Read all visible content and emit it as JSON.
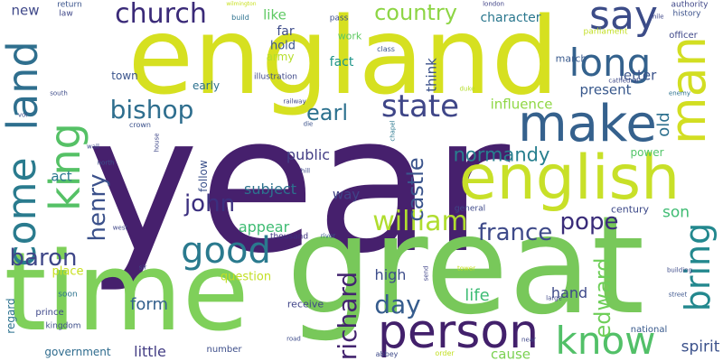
{
  "words": [
    {
      "id": "year",
      "text": "year",
      "color": "#46206d",
      "weight": 1.0
    },
    {
      "id": "great",
      "text": "great",
      "color": "#78c85a",
      "weight": 0.95
    },
    {
      "id": "england",
      "text": "england",
      "color": "#d6e020",
      "weight": 0.85
    },
    {
      "id": "time",
      "text": "time",
      "color": "#7fd05a",
      "weight": 0.78
    },
    {
      "id": "english",
      "text": "english",
      "color": "#c8e028",
      "weight": 0.58
    },
    {
      "id": "make",
      "text": "make",
      "color": "#35618d",
      "weight": 0.52
    },
    {
      "id": "man",
      "text": "man",
      "color": "#d2de22",
      "weight": 0.5
    },
    {
      "id": "person",
      "text": "person",
      "color": "#42206b",
      "weight": 0.44
    },
    {
      "id": "land",
      "text": "land",
      "color": "#2f6f8e",
      "weight": 0.44
    },
    {
      "id": "come",
      "text": "come",
      "color": "#2a7b8e",
      "weight": 0.4
    },
    {
      "id": "king",
      "text": "king",
      "color": "#55c166",
      "weight": 0.4
    },
    {
      "id": "say",
      "text": "say",
      "color": "#3c4c88",
      "weight": 0.38
    },
    {
      "id": "long",
      "text": "long",
      "color": "#34628d",
      "weight": 0.36
    },
    {
      "id": "know",
      "text": "know",
      "color": "#52c068",
      "weight": 0.36
    },
    {
      "id": "bring",
      "text": "bring",
      "color": "#23888e",
      "weight": 0.34
    },
    {
      "id": "good",
      "text": "good",
      "color": "#2a7a8e",
      "weight": 0.32
    },
    {
      "id": "state",
      "text": "state",
      "color": "#3f4688",
      "weight": 0.3
    },
    {
      "id": "william",
      "text": "william",
      "color": "#b0dd2f",
      "weight": 0.26
    },
    {
      "id": "church",
      "text": "church",
      "color": "#3a2a78",
      "weight": 0.24
    },
    {
      "id": "bishop",
      "text": "bishop",
      "color": "#2e6e8e",
      "weight": 0.23
    },
    {
      "id": "richard",
      "text": "richard",
      "color": "#43246f",
      "weight": 0.23
    },
    {
      "id": "henry",
      "text": "henry",
      "color": "#3b518b",
      "weight": 0.22
    },
    {
      "id": "day",
      "text": "day",
      "color": "#365c8d",
      "weight": 0.22
    },
    {
      "id": "edward",
      "text": "edward",
      "color": "#6ece58",
      "weight": 0.21
    },
    {
      "id": "pope",
      "text": "pope",
      "color": "#3a2c79",
      "weight": 0.21
    },
    {
      "id": "john",
      "text": "john",
      "color": "#3b2f7f",
      "weight": 0.2
    },
    {
      "id": "france",
      "text": "france",
      "color": "#3e4a89",
      "weight": 0.2
    },
    {
      "id": "baron",
      "text": "baron",
      "color": "#3f4788",
      "weight": 0.2
    },
    {
      "id": "country",
      "text": "country",
      "color": "#8dd544",
      "weight": 0.19
    },
    {
      "id": "earl",
      "text": "earl",
      "color": "#2c718e",
      "weight": 0.19
    },
    {
      "id": "castle",
      "text": "castle",
      "color": "#3a548c",
      "weight": 0.19
    },
    {
      "id": "normandy",
      "text": "normandy",
      "color": "#277f8e",
      "weight": 0.17
    },
    {
      "id": "life",
      "text": "life",
      "color": "#3dbc74",
      "weight": 0.15
    },
    {
      "id": "form",
      "text": "form",
      "color": "#34618d",
      "weight": 0.15
    },
    {
      "id": "old",
      "text": "old",
      "color": "#2d708e",
      "weight": 0.15
    },
    {
      "id": "spirit",
      "text": "spirit",
      "color": "#3b518b",
      "weight": 0.14
    },
    {
      "id": "son",
      "text": "son",
      "color": "#3fbc73",
      "weight": 0.14
    },
    {
      "id": "hand",
      "text": "hand",
      "color": "#3e4989",
      "weight": 0.13
    },
    {
      "id": "high",
      "text": "high",
      "color": "#3d4d8a",
      "weight": 0.13
    },
    {
      "id": "appear",
      "text": "appear",
      "color": "#3fbc73",
      "weight": 0.13
    },
    {
      "id": "public",
      "text": "public",
      "color": "#433e85",
      "weight": 0.12
    },
    {
      "id": "subject",
      "text": "subject",
      "color": "#2c728e",
      "weight": 0.12
    },
    {
      "id": "little",
      "text": "little",
      "color": "#433d84",
      "weight": 0.12
    },
    {
      "id": "influence",
      "text": "influence",
      "color": "#8fd744",
      "weight": 0.12
    },
    {
      "id": "present",
      "text": "present",
      "color": "#38588c",
      "weight": 0.12
    },
    {
      "id": "letter",
      "text": "letter",
      "color": "#3a538b",
      "weight": 0.12
    },
    {
      "id": "character",
      "text": "character",
      "color": "#2a778e",
      "weight": 0.11
    },
    {
      "id": "like",
      "text": "like",
      "color": "#5ec962",
      "weight": 0.11
    },
    {
      "id": "way",
      "text": "way",
      "color": "#404387",
      "weight": 0.11
    },
    {
      "id": "think",
      "text": "think",
      "color": "#3b518b",
      "weight": 0.11
    },
    {
      "id": "cause",
      "text": "cause",
      "color": "#7ad151",
      "weight": 0.11
    },
    {
      "id": "new",
      "text": "new",
      "color": "#3f4889",
      "weight": 0.11
    },
    {
      "id": "act",
      "text": "act",
      "color": "#2a788e",
      "weight": 0.11
    },
    {
      "id": "fact",
      "text": "fact",
      "color": "#1f968b",
      "weight": 0.1
    },
    {
      "id": "far",
      "text": "far",
      "color": "#3e4c8a",
      "weight": 0.1
    },
    {
      "id": "hold",
      "text": "hold",
      "color": "#3a548c",
      "weight": 0.1
    },
    {
      "id": "army",
      "text": "army",
      "color": "#b5de2b",
      "weight": 0.09
    },
    {
      "id": "question",
      "text": "question",
      "color": "#c2df23",
      "weight": 0.09
    },
    {
      "id": "place",
      "text": "place",
      "color": "#c8e020",
      "weight": 0.09
    },
    {
      "id": "follow",
      "text": "follow",
      "color": "#3b518b",
      "weight": 0.09
    },
    {
      "id": "regard",
      "text": "regard",
      "color": "#2c718e",
      "weight": 0.09
    },
    {
      "id": "government",
      "text": "government",
      "color": "#2f6c8e",
      "weight": 0.08
    },
    {
      "id": "receive",
      "text": "receive",
      "color": "#404588",
      "weight": 0.08
    },
    {
      "id": "power",
      "text": "power",
      "color": "#52c569",
      "weight": 0.08
    },
    {
      "id": "town",
      "text": "town",
      "color": "#3a548c",
      "weight": 0.08
    },
    {
      "id": "early",
      "text": "early",
      "color": "#2c718e",
      "weight": 0.08
    },
    {
      "id": "century",
      "text": "century",
      "color": "#3e4a89",
      "weight": 0.07
    },
    {
      "id": "work",
      "text": "work",
      "color": "#5ec962",
      "weight": 0.07
    },
    {
      "id": "march",
      "text": "march",
      "color": "#38598c",
      "weight": 0.07
    },
    {
      "id": "prince",
      "text": "prince",
      "color": "#3f4889",
      "weight": 0.07
    },
    {
      "id": "national",
      "text": "national",
      "color": "#38598c",
      "weight": 0.07
    },
    {
      "id": "officer",
      "text": "officer",
      "color": "#3f4889",
      "weight": 0.07
    },
    {
      "id": "number",
      "text": "number",
      "color": "#3d4e8a",
      "weight": 0.07
    },
    {
      "id": "history",
      "text": "history",
      "color": "#3b518b",
      "weight": 0.06
    },
    {
      "id": "general",
      "text": "general",
      "color": "#3e4989",
      "weight": 0.06
    },
    {
      "id": "thousand",
      "text": "thousand",
      "color": "#3b2f7f",
      "weight": 0.06
    },
    {
      "id": "authority",
      "text": "authority",
      "color": "#3f4788",
      "weight": 0.06
    },
    {
      "id": "parliament",
      "text": "parliament",
      "color": "#c2df23",
      "weight": 0.06
    },
    {
      "id": "kingdom",
      "text": "kingdom",
      "color": "#3d4e8a",
      "weight": 0.06
    },
    {
      "id": "illustration",
      "text": "illustration",
      "color": "#3e4989",
      "weight": 0.06
    },
    {
      "id": "soon",
      "text": "soon",
      "color": "#2c738e",
      "weight": 0.06
    },
    {
      "id": "return",
      "text": "return",
      "color": "#3a538b",
      "weight": 0.05
    },
    {
      "id": "law",
      "text": "law",
      "color": "#3f4788",
      "weight": 0.05
    },
    {
      "id": "build",
      "text": "build",
      "color": "#2c718e",
      "weight": 0.05
    },
    {
      "id": "pass",
      "text": "pass",
      "color": "#3d4e8a",
      "weight": 0.05
    },
    {
      "id": "class",
      "text": "class",
      "color": "#3a548c",
      "weight": 0.05
    },
    {
      "id": "london",
      "text": "london",
      "color": "#404387",
      "weight": 0.05
    },
    {
      "id": "mile",
      "text": "mile",
      "color": "#3f4788",
      "weight": 0.05
    },
    {
      "id": "cathedral",
      "text": "cathedral",
      "color": "#3e4a89",
      "weight": 0.05
    },
    {
      "id": "enemy",
      "text": "enemy",
      "color": "#2c718e",
      "weight": 0.05
    },
    {
      "id": "duke",
      "text": "duke",
      "color": "#b5de2b",
      "weight": 0.05
    },
    {
      "id": "south",
      "text": "south",
      "color": "#3e4c8a",
      "weight": 0.05
    },
    {
      "id": "vol",
      "text": "vol",
      "color": "#3d4e8a",
      "weight": 0.05
    },
    {
      "id": "crown",
      "text": "crown",
      "color": "#3b518b",
      "weight": 0.05
    },
    {
      "id": "railway",
      "text": "railway",
      "color": "#3f4788",
      "weight": 0.05
    },
    {
      "id": "die",
      "text": "die",
      "color": "#3b518b",
      "weight": 0.05
    },
    {
      "id": "chapel",
      "text": "chapel",
      "color": "#2a788e",
      "weight": 0.05
    },
    {
      "id": "wall",
      "text": "wall",
      "color": "#3e4a89",
      "weight": 0.05
    },
    {
      "id": "house",
      "text": "house",
      "color": "#3f4788",
      "weight": 0.05
    },
    {
      "id": "north",
      "text": "north",
      "color": "#3b518b",
      "weight": 0.05
    },
    {
      "id": "hill",
      "text": "hill",
      "color": "#3e4c8a",
      "weight": 0.05
    },
    {
      "id": "west",
      "text": "west",
      "color": "#3f4788",
      "weight": 0.05
    },
    {
      "id": "river",
      "text": "river",
      "color": "#38588c",
      "weight": 0.05
    },
    {
      "id": "sir",
      "text": "sir",
      "color": "#3e4989",
      "weight": 0.05
    },
    {
      "id": "send",
      "text": "send",
      "color": "#404588",
      "weight": 0.05
    },
    {
      "id": "tower",
      "text": "tower",
      "color": "#c8e020",
      "weight": 0.05
    },
    {
      "id": "building",
      "text": "building",
      "color": "#3e4c8a",
      "weight": 0.05
    },
    {
      "id": "large",
      "text": "large",
      "color": "#3f4788",
      "weight": 0.05
    },
    {
      "id": "street",
      "text": "street",
      "color": "#3a548c",
      "weight": 0.05
    },
    {
      "id": "road",
      "text": "road",
      "color": "#3e4c8a",
      "weight": 0.05
    },
    {
      "id": "near",
      "text": "near",
      "color": "#3f4788",
      "weight": 0.05
    },
    {
      "id": "abbey",
      "text": "abbey",
      "color": "#3e4a89",
      "weight": 0.05
    },
    {
      "id": "order",
      "text": "order",
      "color": "#c2df23",
      "weight": 0.05
    },
    {
      "id": "wilmington",
      "text": "wilmington",
      "color": "#c8e020",
      "weight": 0.04
    }
  ]
}
